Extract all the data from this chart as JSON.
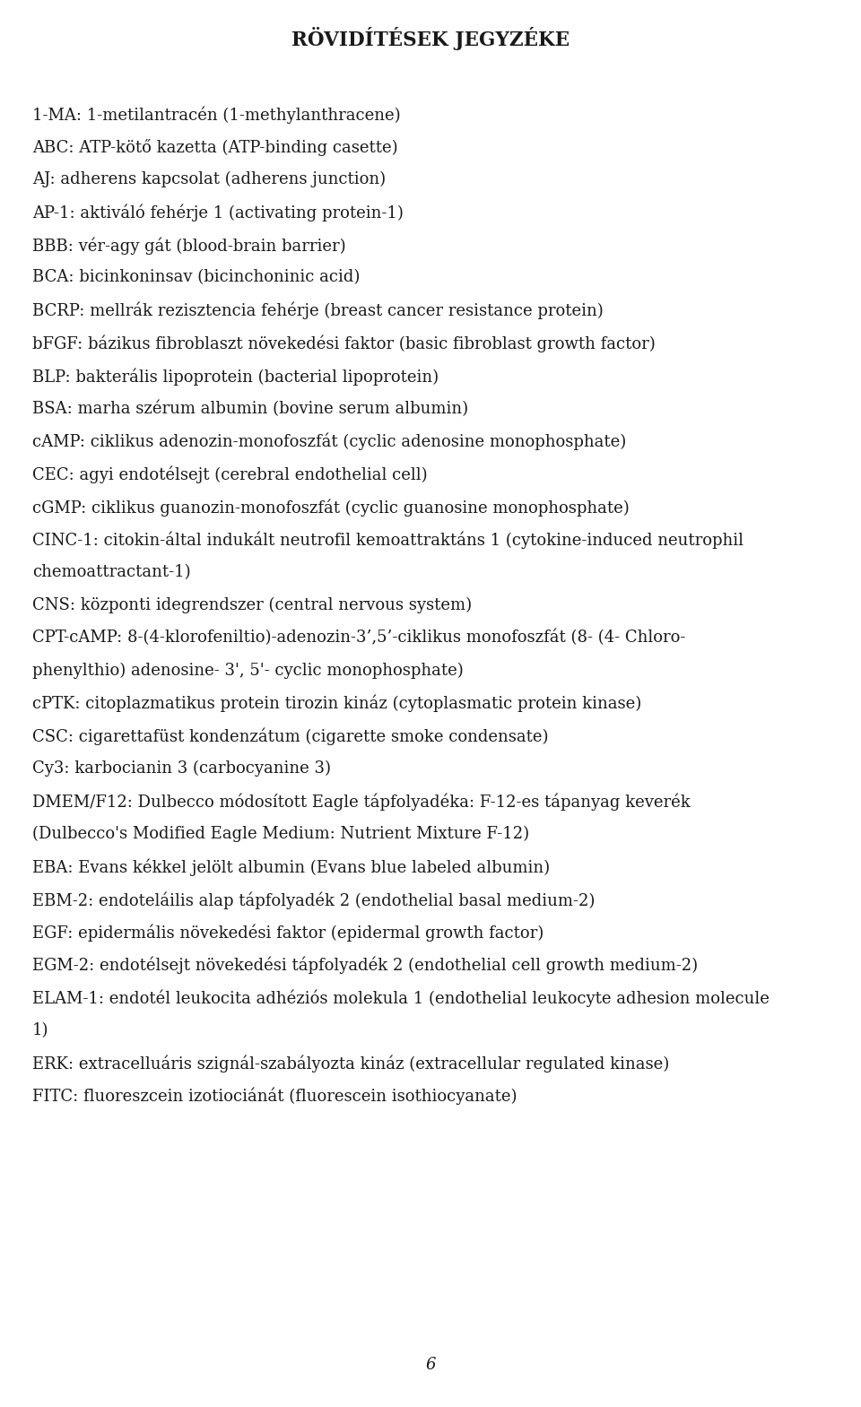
{
  "title": "RÖVIDÍTÉSEK JEGYZÉKE",
  "background_color": "#ffffff",
  "text_color": "#1a1a1a",
  "font_size": 13.0,
  "title_font_size": 15.5,
  "page_number": "6",
  "lines": [
    {
      "text": "1-MA: 1-metilantracén (1-methylanthracene)",
      "continuation": false
    },
    {
      "text": "ABC: ATP-kötő kazetta (ATP-binding casette)",
      "continuation": false
    },
    {
      "text": "AJ: adherens kapcsolat (adherens junction)",
      "continuation": false
    },
    {
      "text": "AP-1: aktiváló fehérje 1 (activating protein-1)",
      "continuation": false
    },
    {
      "text": "BBB: vér-agy gát (blood-brain barrier)",
      "continuation": false
    },
    {
      "text": "BCA: bicinkoninsav (bicinchoninic acid)",
      "continuation": false
    },
    {
      "text": "BCRP: mellrák rezisztencia fehérje (breast cancer resistance protein)",
      "continuation": false
    },
    {
      "text": "bFGF: bázikus fibroblaszt növekedési faktor (basic fibroblast growth factor)",
      "continuation": false
    },
    {
      "text": "BLP: bakterális lipoprotein (bacterial lipoprotein)",
      "continuation": false
    },
    {
      "text": "BSA: marha szérum albumin (bovine serum albumin)",
      "continuation": false
    },
    {
      "text": "cAMP: ciklikus adenozin-monofoszfát (cyclic adenosine monophosphate)",
      "continuation": false
    },
    {
      "text": "CEC: agyi endotélsejt (cerebral endothelial cell)",
      "continuation": false
    },
    {
      "text": "cGMP: ciklikus guanozin-monofoszfát (cyclic guanosine monophosphate)",
      "continuation": false
    },
    {
      "text": "CINC-1: citokin-által indukált neutrofil kemoattraktáns 1 (cytokine-induced neutrophil",
      "continuation": false,
      "justified": true
    },
    {
      "text": "chemoattractant-1)",
      "continuation": true
    },
    {
      "text": "CNS: központi idegrendszer (central nervous system)",
      "continuation": false
    },
    {
      "text": "CPT-cAMP: 8-(4-klorofeniltio)-adenozin-3’,5’-ciklikus monofoszfát (8- (4- Chloro-",
      "continuation": false,
      "justified": true
    },
    {
      "text": "phenylthio) adenosine- 3', 5'- cyclic monophosphate)",
      "continuation": true
    },
    {
      "text": "cPTK: citoplazmatikus protein tirozin kináz (cytoplasmatic protein kinase)",
      "continuation": false
    },
    {
      "text": "CSC: cigarettafüst kondenzátum (cigarette smoke condensate)",
      "continuation": false
    },
    {
      "text": "Cy3: karbocianin 3 (carbocyanine 3)",
      "continuation": false
    },
    {
      "text": "DMEM/F12: Dulbecco módosított Eagle tápfolyadéka: F-12-es tápanyag keverék",
      "continuation": false,
      "justified": true
    },
    {
      "text": "(Dulbecco's Modified Eagle Medium: Nutrient Mixture F-12)",
      "continuation": true
    },
    {
      "text": "EBA: Evans kékkel jelölt albumin (Evans blue labeled albumin)",
      "continuation": false
    },
    {
      "text": "EBM-2: endoteláilis alap tápfolyadék 2 (endothelial basal medium-2)",
      "continuation": false
    },
    {
      "text": "EGF: epidermális növekedési faktor (epidermal growth factor)",
      "continuation": false
    },
    {
      "text": "EGM-2: endotélsejt növekedési tápfolyadék 2 (endothelial cell growth medium-2)",
      "continuation": false
    },
    {
      "text": "ELAM-1: endotél leukocita adhéziós molekula 1 (endothelial leukocyte adhesion molecule",
      "continuation": false
    },
    {
      "text": "1)",
      "continuation": true
    },
    {
      "text": "ERK: extracelluáris szignál-szabályozta kináz (extracellular regulated kinase)",
      "continuation": false
    },
    {
      "text": "FITC: fluoreszcein izotiociánát (fluorescein isothiocyanate)",
      "continuation": false
    }
  ]
}
